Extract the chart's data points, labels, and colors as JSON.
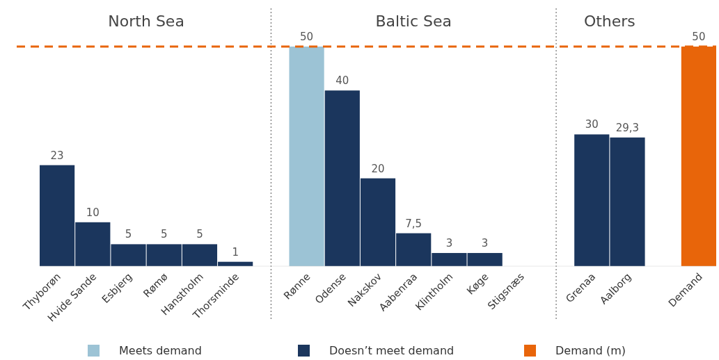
{
  "chart_data": {
    "type": "bar",
    "categories": [
      "Thyborøn",
      "Hvide Sande",
      "Esbjerg",
      "Rømø",
      "Hanstholm",
      "Thorsminde",
      null,
      "Rønne",
      "Odense",
      "Nakskov",
      "Aabenraa",
      "Klintholm",
      "Køge",
      "Stigsnæs",
      null,
      "Grenaa",
      "Aalborg",
      null,
      "Demand"
    ],
    "series": [
      {
        "name": "Meets demand",
        "color": "#9cc3d5",
        "values": [
          null,
          null,
          null,
          null,
          null,
          null,
          null,
          50,
          null,
          null,
          null,
          null,
          null,
          null,
          null,
          null,
          null,
          null,
          null
        ],
        "value_labels": [
          null,
          null,
          null,
          null,
          null,
          null,
          null,
          "50",
          null,
          null,
          null,
          null,
          null,
          null,
          null,
          null,
          null,
          null,
          null
        ]
      },
      {
        "name": "Doesn’t meet demand",
        "color": "#1b365d",
        "values": [
          23,
          10,
          5,
          5,
          5,
          1,
          null,
          null,
          40,
          20,
          7.5,
          3,
          3,
          null,
          null,
          30,
          29.3,
          null,
          null
        ],
        "value_labels": [
          "23",
          "10",
          "5",
          "5",
          "5",
          "1",
          null,
          null,
          "40",
          "20",
          "7,5",
          "3",
          "3",
          null,
          null,
          "30",
          "29,3",
          null,
          null
        ]
      },
      {
        "name": "Demand (m)",
        "color": "#e8650a",
        "values": [
          null,
          null,
          null,
          null,
          null,
          null,
          null,
          null,
          null,
          null,
          null,
          null,
          null,
          null,
          null,
          null,
          null,
          null,
          50
        ],
        "value_labels": [
          null,
          null,
          null,
          null,
          null,
          null,
          null,
          null,
          null,
          null,
          null,
          null,
          null,
          null,
          null,
          null,
          null,
          null,
          "50"
        ]
      }
    ],
    "ylim": [
      0,
      50
    ],
    "tick_labels": "x",
    "legend": "bottom",
    "ref_lines": [
      {
        "axis": "y",
        "value": 50,
        "color": "#e8650a",
        "line_style": "dashed"
      }
    ],
    "annotations": [
      "North Sea",
      "Baltic Sea",
      "Others"
    ]
  }
}
